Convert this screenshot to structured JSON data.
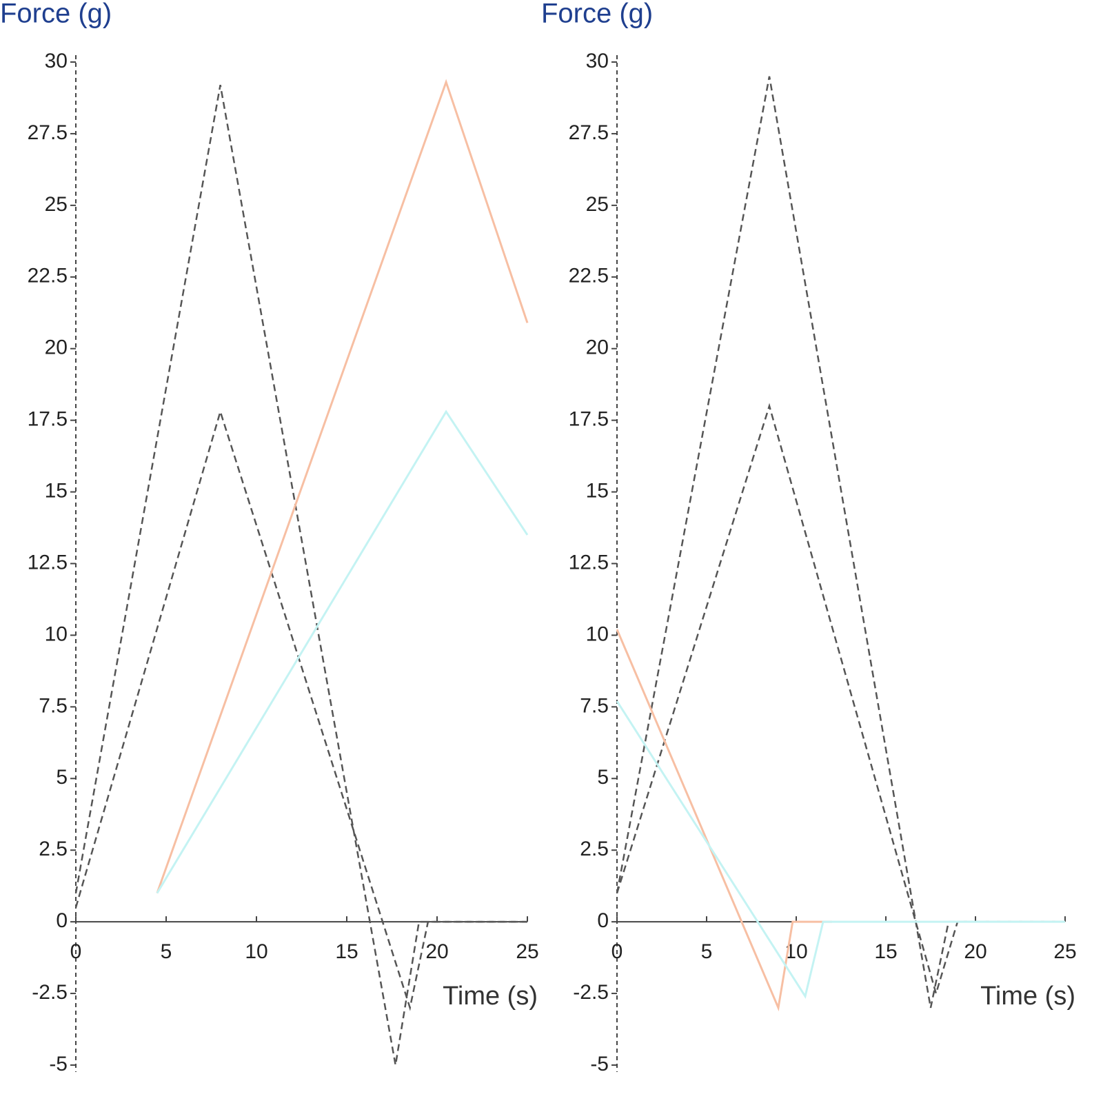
{
  "chart_data": [
    {
      "type": "line",
      "ylabel": "Force (g)",
      "xlabel": "Time (s)",
      "xlim": [
        0,
        25
      ],
      "xticks": [
        0,
        5,
        10,
        15,
        20,
        25
      ],
      "ylim": [
        -5,
        30
      ],
      "yticks": [
        -5,
        -2.5,
        0,
        2.5,
        5,
        7.5,
        10,
        12.5,
        15,
        17.5,
        20,
        22.5,
        25,
        27.5,
        30
      ],
      "series": [
        {
          "color": "#555555",
          "dashed": true,
          "x": [
            0,
            8,
            17.7,
            19,
            25
          ],
          "values": [
            1,
            29.2,
            -5,
            0,
            0
          ]
        },
        {
          "color": "#555555",
          "dashed": true,
          "x": [
            0,
            8,
            18.5,
            19.5,
            25
          ],
          "values": [
            0.5,
            17.8,
            -3,
            0,
            0
          ]
        },
        {
          "color": "#f7bfa3",
          "dashed": false,
          "x": [
            4.5,
            20.5,
            25
          ],
          "values": [
            1,
            29.3,
            20.9
          ]
        },
        {
          "color": "#c4f3f3",
          "dashed": false,
          "x": [
            4.5,
            20.5,
            25
          ],
          "values": [
            1,
            17.8,
            13.5
          ]
        }
      ]
    },
    {
      "type": "line",
      "ylabel": "Force (g)",
      "xlabel": "Time (s)",
      "xlim": [
        0,
        25
      ],
      "xticks": [
        0,
        5,
        10,
        15,
        20,
        25
      ],
      "ylim": [
        -5,
        30
      ],
      "yticks": [
        -5,
        -2.5,
        0,
        2.5,
        5,
        7.5,
        10,
        12.5,
        15,
        17.5,
        20,
        22.5,
        25,
        27.5,
        30
      ],
      "series": [
        {
          "color": "#555555",
          "dashed": true,
          "x": [
            0,
            8.5,
            17.5,
            18.5,
            25
          ],
          "values": [
            1,
            29.5,
            -3,
            0,
            0
          ]
        },
        {
          "color": "#555555",
          "dashed": true,
          "x": [
            0,
            8.5,
            17.8,
            19,
            25
          ],
          "values": [
            1,
            18,
            -2.5,
            0,
            0
          ]
        },
        {
          "color": "#f7bfa3",
          "dashed": false,
          "x": [
            0,
            9,
            9.8,
            12
          ],
          "values": [
            10.2,
            -3,
            0,
            0
          ]
        },
        {
          "color": "#c4f3f3",
          "dashed": false,
          "x": [
            0,
            10.5,
            11.5,
            25
          ],
          "values": [
            7.7,
            -2.6,
            0,
            0
          ]
        }
      ]
    }
  ]
}
